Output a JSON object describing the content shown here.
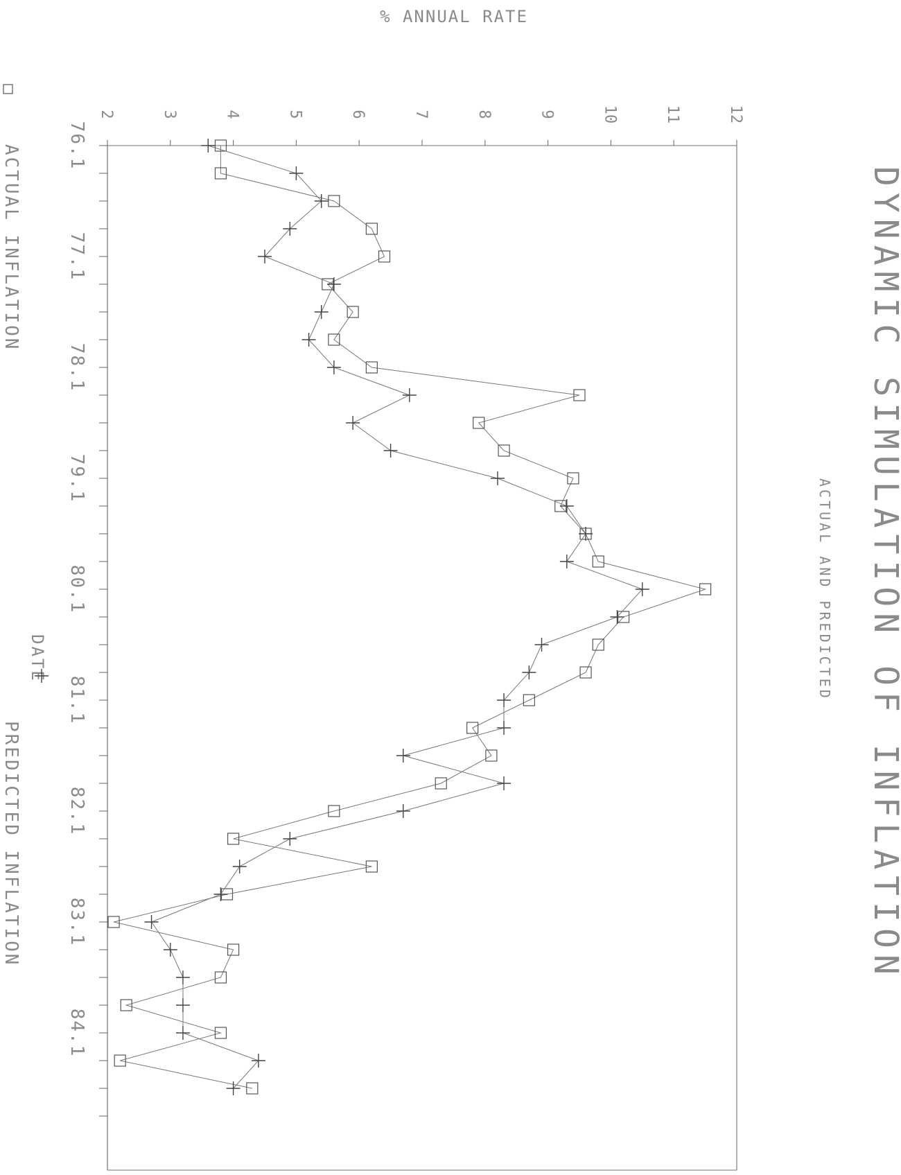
{
  "chart_data": {
    "type": "line",
    "title": "DYNAMIC SIMULATION OF INFLATION",
    "subtitle": "ACTUAL AND PREDICTED",
    "xlabel": "DATE",
    "ylabel": "% ANNUAL RATE",
    "orientation": "rotated-90-clockwise",
    "x_ticks": [
      "76.1",
      "77.1",
      "78.1",
      "79.1",
      "80.1",
      "81.1",
      "82.1",
      "83.1",
      "84.1"
    ],
    "y_ticks": [
      "2",
      "3",
      "4",
      "5",
      "6",
      "7",
      "8",
      "9",
      "10",
      "11",
      "12"
    ],
    "ylim": [
      2,
      12
    ],
    "x_start": "76.1",
    "period": "quarterly",
    "legend": [
      {
        "marker": "□",
        "label": "ACTUAL INFLATION"
      },
      {
        "marker": "+",
        "label": "PREDICTED INFLATION"
      }
    ],
    "legend_position": "bottom",
    "grid": false,
    "series": [
      {
        "name": "ACTUAL INFLATION",
        "marker": "square",
        "values": [
          3.8,
          3.8,
          5.6,
          6.2,
          6.4,
          5.5,
          5.9,
          5.6,
          6.2,
          9.5,
          7.9,
          8.3,
          9.4,
          9.2,
          9.6,
          9.8,
          11.5,
          10.2,
          9.8,
          9.6,
          8.7,
          7.8,
          8.1,
          7.3,
          5.6,
          4.0,
          6.2,
          3.9,
          2.1,
          4.0,
          3.8,
          2.3,
          3.8,
          2.2,
          4.3
        ]
      },
      {
        "name": "PREDICTED INFLATION",
        "marker": "plus",
        "values": [
          3.6,
          5.0,
          5.4,
          4.9,
          4.5,
          5.6,
          5.4,
          5.2,
          5.6,
          6.8,
          5.9,
          6.5,
          8.2,
          9.3,
          9.6,
          9.3,
          10.5,
          10.1,
          8.9,
          8.7,
          8.3,
          8.3,
          6.7,
          8.3,
          6.7,
          4.9,
          4.1,
          3.8,
          2.7,
          3.0,
          3.2,
          3.2,
          3.2,
          4.4,
          4.0
        ]
      }
    ]
  }
}
